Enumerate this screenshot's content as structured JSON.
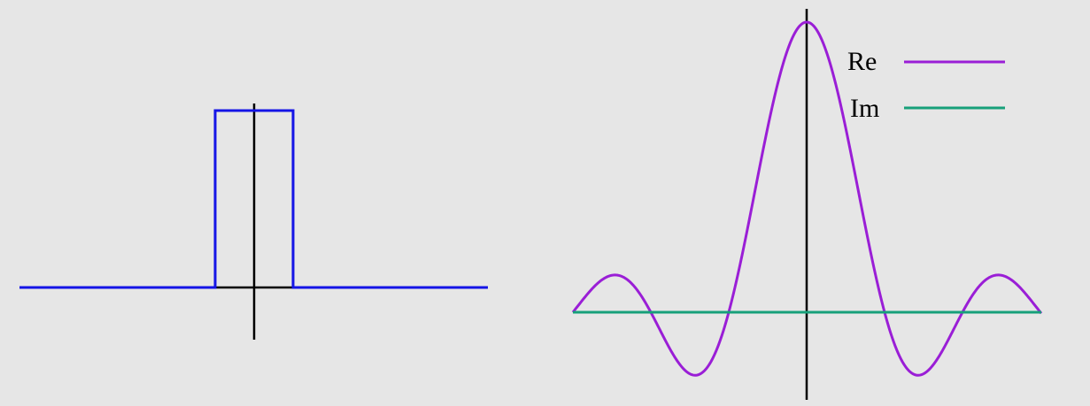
{
  "legend": [
    {
      "label": "Re",
      "color": "#9a1ed6"
    },
    {
      "label": "Im",
      "color": "#17a07a"
    }
  ]
}
